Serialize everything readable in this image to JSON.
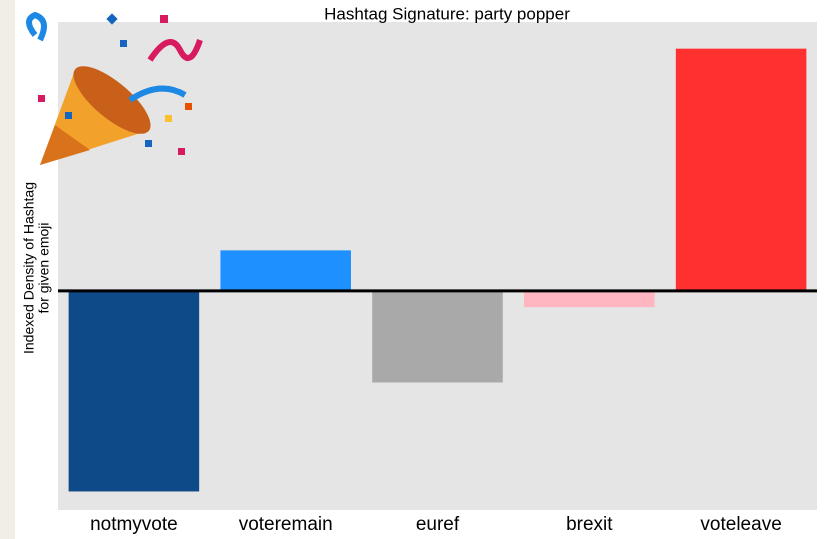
{
  "chart_data": {
    "type": "bar",
    "title": "Hashtag Signature: party popper",
    "ylabel": [
      "Indexed Density of Hashtag",
      "for given emoji"
    ],
    "categories": [
      "notmyvote",
      "voteremain",
      "euref",
      "brexit",
      "voteleave"
    ],
    "values": [
      -1.73,
      0.35,
      -0.79,
      -0.14,
      2.09
    ],
    "colors": [
      "#0f4a88",
      "#1e90ff",
      "#a9a9a9",
      "#ffb6c1",
      "#ff3030"
    ],
    "ylim": [
      -1.89,
      2.32
    ]
  }
}
